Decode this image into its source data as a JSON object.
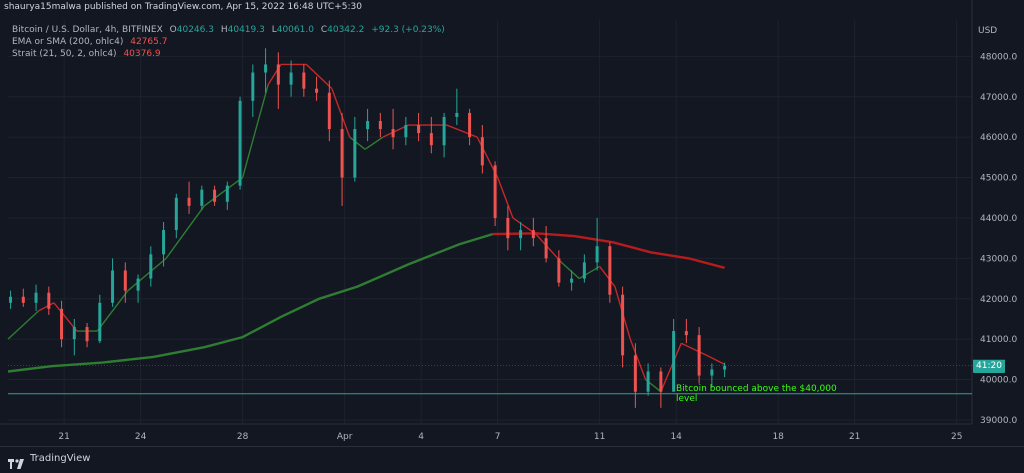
{
  "header": {
    "published_by": "shaurya15malwa published on TradingView.com, Apr 15, 2022 16:48 UTC+5:30"
  },
  "legend": {
    "symbol": "Bitcoin / U.S. Dollar, 4h, BITFINEX",
    "ohlc": [
      {
        "label": "O",
        "value": "40246.3"
      },
      {
        "label": "H",
        "value": "40419.3"
      },
      {
        "label": "L",
        "value": "40061.0"
      },
      {
        "label": "C",
        "value": "40342.2"
      }
    ],
    "change": "+92.3 (+0.23%)",
    "indicator1_name": "EMA or SMA (200, ohlc4)",
    "indicator1_value": "42765.7",
    "indicator2_name": "Strait (21, 50, 2, ohlc4)",
    "indicator2_value": "40376.9"
  },
  "price_axis": {
    "currency": "USD",
    "countdown": "41:20"
  },
  "annotation": {
    "text": "Bitcoin bounced above the $40,000 level"
  },
  "footer": {
    "brand": "TradingView"
  },
  "colors": {
    "background": "#131722",
    "up": "#26a69a",
    "down": "#ef5350",
    "ema200": "#2e7d32",
    "ema200_red": "#b71c1c",
    "strait_green": "#1b5e20",
    "strait_red": "#c62828",
    "support": "#26a69a",
    "annotation": "#39ff14"
  },
  "chart_data": {
    "type": "candlestick",
    "ylim": [
      38900,
      48900
    ],
    "y_ticks": [
      39000,
      40000,
      41000,
      42000,
      43000,
      44000,
      45000,
      46000,
      47000,
      48000
    ],
    "y_tick_labels": [
      "39000.0",
      "40000.0",
      "41000.0",
      "42000.0",
      "43000.0",
      "44000.0",
      "45000.0",
      "46000.0",
      "47000.0",
      "48000.0"
    ],
    "x_ticks": [
      {
        "label": "21",
        "day": 21
      },
      {
        "label": "24",
        "day": 24
      },
      {
        "label": "28",
        "day": 28
      },
      {
        "label": "Apr",
        "day": 32
      },
      {
        "label": "4",
        "day": 35
      },
      {
        "label": "7",
        "day": 38
      },
      {
        "label": "11",
        "day": 42
      },
      {
        "label": "14",
        "day": 45
      },
      {
        "label": "18",
        "day": 49
      },
      {
        "label": "21",
        "day": 52
      },
      {
        "label": "25",
        "day": 56
      }
    ],
    "x_day_range": [
      18.8,
      56.6
    ],
    "support_level": 39650,
    "last_price": 40342.2,
    "candles": [
      {
        "day": 18.9,
        "o": 41900,
        "h": 42200,
        "l": 41750,
        "c": 42050
      },
      {
        "day": 19.4,
        "o": 42050,
        "h": 42250,
        "l": 41800,
        "c": 41900
      },
      {
        "day": 19.9,
        "o": 41900,
        "h": 42350,
        "l": 41700,
        "c": 42150
      },
      {
        "day": 20.4,
        "o": 42150,
        "h": 42300,
        "l": 41600,
        "c": 41750
      },
      {
        "day": 20.9,
        "o": 41750,
        "h": 41950,
        "l": 40800,
        "c": 41000
      },
      {
        "day": 21.4,
        "o": 41000,
        "h": 41500,
        "l": 40600,
        "c": 41300
      },
      {
        "day": 21.9,
        "o": 41300,
        "h": 41400,
        "l": 40800,
        "c": 40950
      },
      {
        "day": 22.4,
        "o": 40950,
        "h": 42100,
        "l": 40900,
        "c": 41900
      },
      {
        "day": 22.9,
        "o": 41900,
        "h": 43000,
        "l": 41800,
        "c": 42700
      },
      {
        "day": 23.4,
        "o": 42700,
        "h": 42900,
        "l": 41900,
        "c": 42200
      },
      {
        "day": 23.9,
        "o": 42200,
        "h": 42600,
        "l": 41900,
        "c": 42500
      },
      {
        "day": 24.4,
        "o": 42500,
        "h": 43300,
        "l": 42300,
        "c": 43100
      },
      {
        "day": 24.9,
        "o": 43100,
        "h": 43900,
        "l": 42800,
        "c": 43700
      },
      {
        "day": 25.4,
        "o": 43700,
        "h": 44600,
        "l": 43500,
        "c": 44500
      },
      {
        "day": 25.9,
        "o": 44500,
        "h": 44900,
        "l": 44100,
        "c": 44300
      },
      {
        "day": 26.4,
        "o": 44300,
        "h": 44800,
        "l": 44200,
        "c": 44700
      },
      {
        "day": 26.9,
        "o": 44700,
        "h": 44800,
        "l": 44300,
        "c": 44400
      },
      {
        "day": 27.4,
        "o": 44400,
        "h": 44900,
        "l": 44200,
        "c": 44800
      },
      {
        "day": 27.9,
        "o": 44800,
        "h": 47000,
        "l": 44700,
        "c": 46900
      },
      {
        "day": 28.4,
        "o": 46900,
        "h": 47800,
        "l": 46500,
        "c": 47600
      },
      {
        "day": 28.9,
        "o": 47600,
        "h": 48200,
        "l": 47100,
        "c": 47800
      },
      {
        "day": 29.4,
        "o": 47800,
        "h": 48100,
        "l": 46700,
        "c": 47300
      },
      {
        "day": 29.9,
        "o": 47300,
        "h": 47900,
        "l": 47000,
        "c": 47600
      },
      {
        "day": 30.4,
        "o": 47600,
        "h": 47800,
        "l": 47000,
        "c": 47200
      },
      {
        "day": 30.9,
        "o": 47200,
        "h": 47500,
        "l": 46900,
        "c": 47100
      },
      {
        "day": 31.4,
        "o": 47100,
        "h": 47400,
        "l": 45900,
        "c": 46200
      },
      {
        "day": 31.9,
        "o": 46200,
        "h": 46600,
        "l": 44300,
        "c": 45000
      },
      {
        "day": 32.4,
        "o": 45000,
        "h": 46500,
        "l": 44900,
        "c": 46200
      },
      {
        "day": 32.9,
        "o": 46200,
        "h": 46700,
        "l": 45900,
        "c": 46400
      },
      {
        "day": 33.4,
        "o": 46400,
        "h": 46600,
        "l": 46000,
        "c": 46200
      },
      {
        "day": 33.9,
        "o": 46200,
        "h": 46700,
        "l": 45700,
        "c": 46000
      },
      {
        "day": 34.4,
        "o": 46000,
        "h": 46500,
        "l": 45800,
        "c": 46300
      },
      {
        "day": 34.9,
        "o": 46300,
        "h": 46600,
        "l": 45900,
        "c": 46100
      },
      {
        "day": 35.4,
        "o": 46100,
        "h": 46500,
        "l": 45600,
        "c": 45800
      },
      {
        "day": 35.9,
        "o": 45800,
        "h": 46600,
        "l": 45500,
        "c": 46500
      },
      {
        "day": 36.4,
        "o": 46500,
        "h": 47200,
        "l": 46300,
        "c": 46600
      },
      {
        "day": 36.9,
        "o": 46600,
        "h": 46700,
        "l": 45800,
        "c": 46000
      },
      {
        "day": 37.4,
        "o": 46000,
        "h": 46300,
        "l": 45100,
        "c": 45300
      },
      {
        "day": 37.9,
        "o": 45300,
        "h": 45400,
        "l": 43800,
        "c": 44000
      },
      {
        "day": 38.4,
        "o": 44000,
        "h": 44300,
        "l": 43200,
        "c": 43500
      },
      {
        "day": 38.9,
        "o": 43500,
        "h": 43900,
        "l": 43200,
        "c": 43700
      },
      {
        "day": 39.4,
        "o": 43700,
        "h": 44000,
        "l": 43300,
        "c": 43500
      },
      {
        "day": 39.9,
        "o": 43500,
        "h": 43800,
        "l": 42900,
        "c": 43000
      },
      {
        "day": 40.4,
        "o": 43000,
        "h": 43200,
        "l": 42300,
        "c": 42400
      },
      {
        "day": 40.9,
        "o": 42400,
        "h": 42700,
        "l": 42200,
        "c": 42500
      },
      {
        "day": 41.4,
        "o": 42500,
        "h": 43100,
        "l": 42400,
        "c": 42900
      },
      {
        "day": 41.9,
        "o": 42900,
        "h": 44000,
        "l": 42700,
        "c": 43300
      },
      {
        "day": 42.4,
        "o": 43300,
        "h": 43400,
        "l": 41900,
        "c": 42100
      },
      {
        "day": 42.9,
        "o": 42100,
        "h": 42300,
        "l": 40300,
        "c": 40600
      },
      {
        "day": 43.4,
        "o": 40600,
        "h": 40900,
        "l": 39300,
        "c": 39700
      },
      {
        "day": 43.9,
        "o": 39700,
        "h": 40400,
        "l": 39600,
        "c": 40200
      },
      {
        "day": 44.4,
        "o": 40200,
        "h": 40300,
        "l": 39300,
        "c": 39700
      },
      {
        "day": 44.9,
        "o": 39700,
        "h": 41500,
        "l": 39700,
        "c": 41200
      },
      {
        "day": 45.4,
        "o": 41200,
        "h": 41500,
        "l": 40900,
        "c": 41100
      },
      {
        "day": 45.9,
        "o": 41100,
        "h": 41300,
        "l": 39900,
        "c": 40100
      },
      {
        "day": 46.4,
        "o": 40100,
        "h": 40400,
        "l": 39800,
        "c": 40250
      },
      {
        "day": 46.9,
        "o": 40246.3,
        "h": 40419.3,
        "l": 40061.0,
        "c": 40342.2
      }
    ],
    "ema200": [
      {
        "day": 18.8,
        "v": 40200
      },
      {
        "day": 20.5,
        "v": 40330
      },
      {
        "day": 22.5,
        "v": 40420
      },
      {
        "day": 24.5,
        "v": 40560
      },
      {
        "day": 26.5,
        "v": 40800
      },
      {
        "day": 28.0,
        "v": 41050
      },
      {
        "day": 29.5,
        "v": 41550
      },
      {
        "day": 31.0,
        "v": 42000
      },
      {
        "day": 32.5,
        "v": 42300
      },
      {
        "day": 34.5,
        "v": 42850
      },
      {
        "day": 36.5,
        "v": 43350
      },
      {
        "day": 37.8,
        "v": 43600
      },
      {
        "day": 39.5,
        "v": 43620
      },
      {
        "day": 41.0,
        "v": 43550
      },
      {
        "day": 42.5,
        "v": 43400
      },
      {
        "day": 44.0,
        "v": 43150
      },
      {
        "day": 45.5,
        "v": 43000
      },
      {
        "day": 46.9,
        "v": 42765.7
      }
    ],
    "ema200_turn_day": 37.8,
    "strait": [
      {
        "day": 18.8,
        "v": 41000,
        "t": "g"
      },
      {
        "day": 20.0,
        "v": 41700,
        "t": "g"
      },
      {
        "day": 20.6,
        "v": 41900,
        "t": "r"
      },
      {
        "day": 21.5,
        "v": 41200,
        "t": "r"
      },
      {
        "day": 22.3,
        "v": 41200,
        "t": "g"
      },
      {
        "day": 23.5,
        "v": 42200,
        "t": "g"
      },
      {
        "day": 25.0,
        "v": 43000,
        "t": "g"
      },
      {
        "day": 26.5,
        "v": 44300,
        "t": "g"
      },
      {
        "day": 28.0,
        "v": 45000,
        "t": "g"
      },
      {
        "day": 29.0,
        "v": 47300,
        "t": "g"
      },
      {
        "day": 29.5,
        "v": 47800,
        "t": "r"
      },
      {
        "day": 30.5,
        "v": 47800,
        "t": "r"
      },
      {
        "day": 31.5,
        "v": 47200,
        "t": "r"
      },
      {
        "day": 32.2,
        "v": 46000,
        "t": "r"
      },
      {
        "day": 32.8,
        "v": 45700,
        "t": "g"
      },
      {
        "day": 33.5,
        "v": 46000,
        "t": "g"
      },
      {
        "day": 34.5,
        "v": 46300,
        "t": "r"
      },
      {
        "day": 36.0,
        "v": 46300,
        "t": "r"
      },
      {
        "day": 37.2,
        "v": 46000,
        "t": "r"
      },
      {
        "day": 38.0,
        "v": 45000,
        "t": "r"
      },
      {
        "day": 38.6,
        "v": 44000,
        "t": "r"
      },
      {
        "day": 39.5,
        "v": 43600,
        "t": "r"
      },
      {
        "day": 40.5,
        "v": 42900,
        "t": "r"
      },
      {
        "day": 41.2,
        "v": 42500,
        "t": "g"
      },
      {
        "day": 42.0,
        "v": 42800,
        "t": "g"
      },
      {
        "day": 42.6,
        "v": 42300,
        "t": "r"
      },
      {
        "day": 43.2,
        "v": 41000,
        "t": "r"
      },
      {
        "day": 43.8,
        "v": 40000,
        "t": "r"
      },
      {
        "day": 44.4,
        "v": 39700,
        "t": "g"
      },
      {
        "day": 45.2,
        "v": 40900,
        "t": "r"
      },
      {
        "day": 46.2,
        "v": 40600,
        "t": "r"
      },
      {
        "day": 46.9,
        "v": 40376.9,
        "t": "r"
      }
    ]
  }
}
